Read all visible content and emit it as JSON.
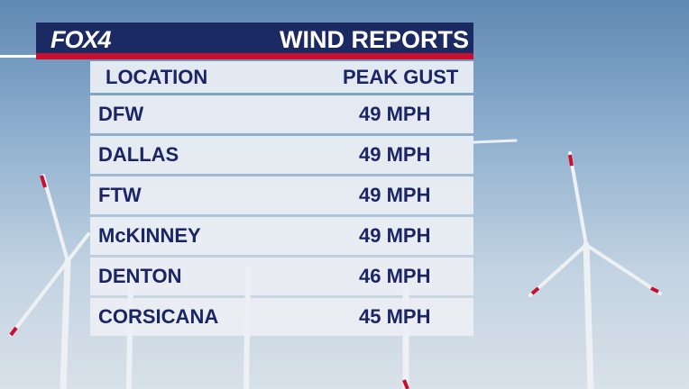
{
  "header": {
    "logo": "FOX4",
    "title": "WIND REPORTS"
  },
  "table": {
    "columns": [
      "LOCATION",
      "PEAK GUST"
    ],
    "rows": [
      [
        "DFW",
        "49 MPH"
      ],
      [
        "DALLAS",
        "49 MPH"
      ],
      [
        "FTW",
        "49 MPH"
      ],
      [
        "McKINNEY",
        "49 MPH"
      ],
      [
        "DENTON",
        "46 MPH"
      ],
      [
        "CORSICANA",
        "45 MPH"
      ]
    ]
  }
}
